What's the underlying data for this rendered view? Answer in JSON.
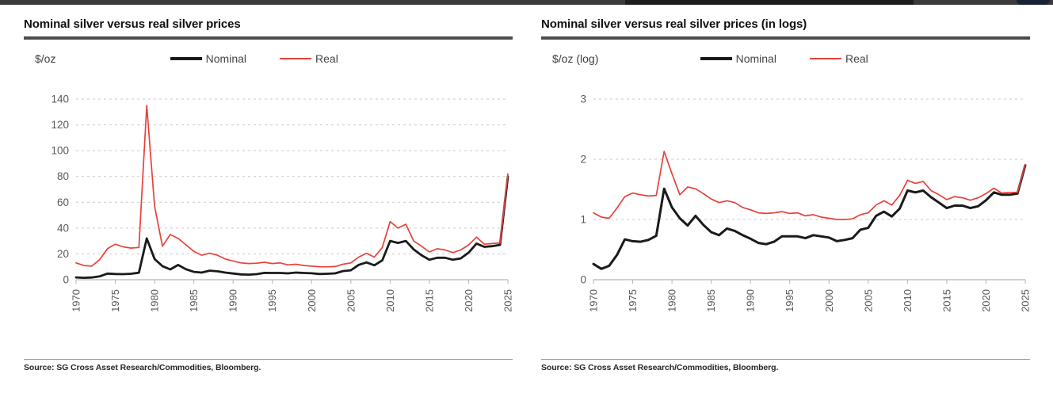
{
  "chart_data": [
    {
      "type": "line",
      "title": "Nominal silver versus real silver prices",
      "unit_label": "$/oz",
      "source": "Source: SG Cross Asset Research/Commodities, Bloomberg.",
      "legend_position": "top",
      "grid": "horizontal-dashed",
      "frequency": "annual",
      "x_start": 1970,
      "x_end": 2025,
      "xticks": [
        1970,
        1975,
        1980,
        1985,
        1990,
        1995,
        2000,
        2005,
        2010,
        2015,
        2020,
        2025
      ],
      "ylim": [
        0,
        140
      ],
      "yticks": [
        0,
        20,
        40,
        60,
        80,
        100,
        120,
        140
      ],
      "series": [
        {
          "name": "Nominal",
          "color": "#1a1a1a",
          "line_width": 2.8,
          "values": [
            1.8,
            1.5,
            1.7,
            2.6,
            4.7,
            4.4,
            4.3,
            4.6,
            5.4,
            32,
            16,
            10.5,
            8,
            11.4,
            8.1,
            6.1,
            5.5,
            7,
            6.5,
            5.5,
            4.8,
            4.1,
            3.9,
            4.3,
            5.3,
            5.2,
            5.2,
            4.9,
            5.5,
            5.2,
            5,
            4.4,
            4.6,
            4.9,
            6.7,
            7.3,
            11.5,
            13.4,
            11.2,
            15,
            30,
            28.5,
            30,
            23.5,
            19,
            15.5,
            17,
            17,
            15.5,
            16.5,
            21,
            28,
            25.5,
            26,
            27,
            80
          ]
        },
        {
          "name": "Real",
          "color": "#e8413a",
          "line_width": 1.7,
          "values": [
            13,
            11,
            10.5,
            15.5,
            24,
            27.5,
            25.5,
            24.5,
            25,
            135,
            57,
            26,
            35,
            32,
            27,
            22,
            19,
            20.5,
            19,
            16,
            14.5,
            13,
            12.5,
            12.8,
            13.5,
            12.5,
            13,
            11.5,
            12,
            11,
            10.5,
            10,
            10,
            10.2,
            12,
            13,
            17.5,
            20.5,
            17.5,
            25,
            45,
            40,
            43,
            30,
            26,
            21.5,
            24,
            23,
            21,
            23,
            27,
            33,
            27.5,
            28,
            28.5,
            82
          ]
        }
      ]
    },
    {
      "type": "line",
      "title": "Nominal silver versus real silver prices (in logs)",
      "unit_label": "$/oz (log)",
      "source": "Source: SG Cross Asset Research/Commodities, Bloomberg.",
      "legend_position": "top",
      "grid": "horizontal-dashed",
      "frequency": "annual",
      "x_start": 1970,
      "x_end": 2025,
      "xticks": [
        1970,
        1975,
        1980,
        1985,
        1990,
        1995,
        2000,
        2005,
        2010,
        2015,
        2020,
        2025
      ],
      "ylim": [
        0,
        3
      ],
      "yticks": [
        0,
        1,
        2,
        3
      ],
      "series": [
        {
          "name": "Nominal",
          "color": "#1a1a1a",
          "line_width": 3,
          "values": [
            0.26,
            0.18,
            0.23,
            0.41,
            0.67,
            0.64,
            0.63,
            0.66,
            0.73,
            1.51,
            1.2,
            1.02,
            0.9,
            1.06,
            0.91,
            0.79,
            0.74,
            0.85,
            0.81,
            0.74,
            0.68,
            0.61,
            0.59,
            0.63,
            0.72,
            0.72,
            0.72,
            0.69,
            0.74,
            0.72,
            0.7,
            0.64,
            0.66,
            0.69,
            0.83,
            0.86,
            1.06,
            1.13,
            1.05,
            1.18,
            1.48,
            1.45,
            1.48,
            1.37,
            1.28,
            1.19,
            1.23,
            1.23,
            1.19,
            1.22,
            1.32,
            1.45,
            1.41,
            1.41,
            1.43,
            1.9
          ]
        },
        {
          "name": "Real",
          "color": "#e8413a",
          "line_width": 1.7,
          "values": [
            1.11,
            1.04,
            1.02,
            1.19,
            1.38,
            1.44,
            1.41,
            1.39,
            1.4,
            2.13,
            1.76,
            1.41,
            1.54,
            1.51,
            1.43,
            1.34,
            1.28,
            1.31,
            1.28,
            1.2,
            1.16,
            1.11,
            1.1,
            1.11,
            1.13,
            1.1,
            1.11,
            1.06,
            1.08,
            1.04,
            1.02,
            1,
            1,
            1.01,
            1.08,
            1.11,
            1.24,
            1.31,
            1.24,
            1.4,
            1.65,
            1.6,
            1.63,
            1.48,
            1.41,
            1.33,
            1.38,
            1.36,
            1.32,
            1.36,
            1.43,
            1.52,
            1.44,
            1.45,
            1.45,
            1.91
          ]
        }
      ]
    }
  ]
}
